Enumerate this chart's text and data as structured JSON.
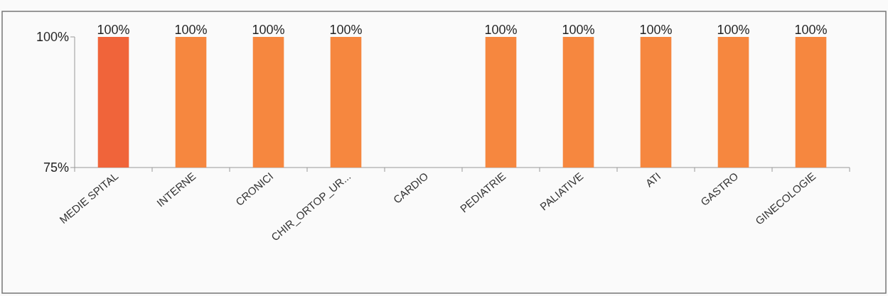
{
  "chart_data": {
    "type": "bar",
    "categories": [
      "MEDIE SPITAL",
      "INTERNE",
      "CRONICI",
      "CHIR_ORTOP_UR...",
      "CARDIO",
      "PEDIATRIE",
      "PALIATIVE",
      "ATI",
      "GASTRO",
      "GINECOLOGIE"
    ],
    "values": [
      100,
      100,
      100,
      100,
      null,
      100,
      100,
      100,
      100,
      100
    ],
    "value_labels": [
      "100%",
      "100%",
      "100%",
      "100%",
      null,
      "100%",
      "100%",
      "100%",
      "100%",
      "100%"
    ],
    "colors": [
      "#f0643a",
      "#f6873f",
      "#f6873f",
      "#f6873f",
      null,
      "#f6873f",
      "#f6873f",
      "#f6873f",
      "#f6873f",
      "#f6873f"
    ],
    "ylim": [
      75,
      100
    ],
    "yticks": [
      {
        "value": 75,
        "label": "75%"
      },
      {
        "value": 100,
        "label": "100%"
      }
    ]
  }
}
